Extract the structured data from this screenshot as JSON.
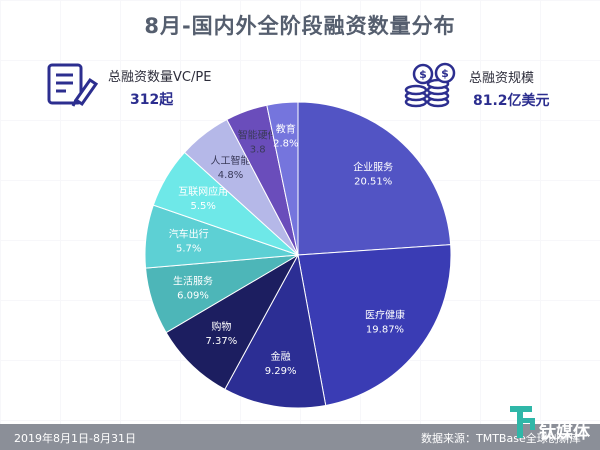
{
  "title": "8月-国内外全阶段融资数量分布",
  "stats": {
    "left_label": "总融资数量VC/PE",
    "left_value": "312起",
    "right_label": "总融资规模",
    "right_value": "81.2亿美元"
  },
  "icons": {
    "left": "document-pen-icon",
    "right": "coin-stack-icon"
  },
  "footer": {
    "date": "2019年8月1日-8月31日",
    "source": "数据来源：TMTBase全球创新库"
  },
  "logo": {
    "text": "钛媒体"
  },
  "colors": {
    "title": "#555e6e",
    "accent": "#2c2e8f",
    "footer": "#8b8f98"
  },
  "chart_data": {
    "type": "pie",
    "title": "8月-国内外全阶段融资数量分布",
    "start_angle": -90,
    "direction": "clockwise",
    "slices": [
      {
        "name": "企业服务",
        "label": "20.51%",
        "value": 20.51,
        "color": "#5254c4"
      },
      {
        "name": "医疗健康",
        "label": "19.87%",
        "value": 19.87,
        "color": "#3a3cb4"
      },
      {
        "name": "金融",
        "label": "9.29%",
        "value": 9.29,
        "color": "#2c2e94"
      },
      {
        "name": "购物",
        "label": "7.37%",
        "value": 7.37,
        "color": "#1c1e60"
      },
      {
        "name": "生活服务",
        "label": "6.09%",
        "value": 6.09,
        "color": "#4db6b8"
      },
      {
        "name": "汽车出行",
        "label": "5.7%",
        "value": 5.7,
        "color": "#5dd0d4"
      },
      {
        "name": "互联网应用",
        "label": "5.5%",
        "value": 5.5,
        "color": "#6ee8e8"
      },
      {
        "name": "人工智能",
        "label": "4.8%",
        "value": 4.8,
        "color": "#b5b8e8"
      },
      {
        "name": "智能硬件",
        "label": "3.8",
        "value": 3.8,
        "color": "#6a4dbb"
      },
      {
        "name": "教育",
        "label": "2.8%",
        "value": 2.8,
        "color": "#7575dd"
      }
    ]
  }
}
